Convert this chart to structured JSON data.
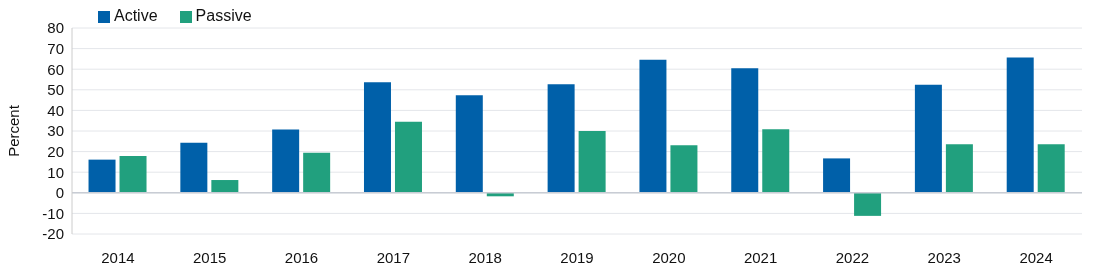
{
  "chart_data": {
    "type": "bar",
    "ylabel": "Percent",
    "categories": [
      "2014",
      "2015",
      "2016",
      "2017",
      "2018",
      "2019",
      "2020",
      "2021",
      "2022",
      "2023",
      "2024"
    ],
    "series": [
      {
        "name": "Active",
        "color": "#0060a9",
        "values": [
          16.1,
          24.3,
          30.7,
          53.7,
          47.3,
          52.7,
          64.6,
          60.5,
          16.7,
          52.4,
          65.7
        ]
      },
      {
        "name": "Passive",
        "color": "#21a07e",
        "values": [
          17.9,
          6.2,
          19.5,
          34.5,
          -1.7,
          30.0,
          23.1,
          30.9,
          -11.2,
          23.6,
          23.6
        ]
      }
    ],
    "ylim": [
      -20,
      80
    ],
    "yticks": [
      -20,
      -10,
      0,
      10,
      20,
      30,
      40,
      50,
      60,
      70,
      80
    ],
    "grid": "y",
    "legend": "top left"
  }
}
